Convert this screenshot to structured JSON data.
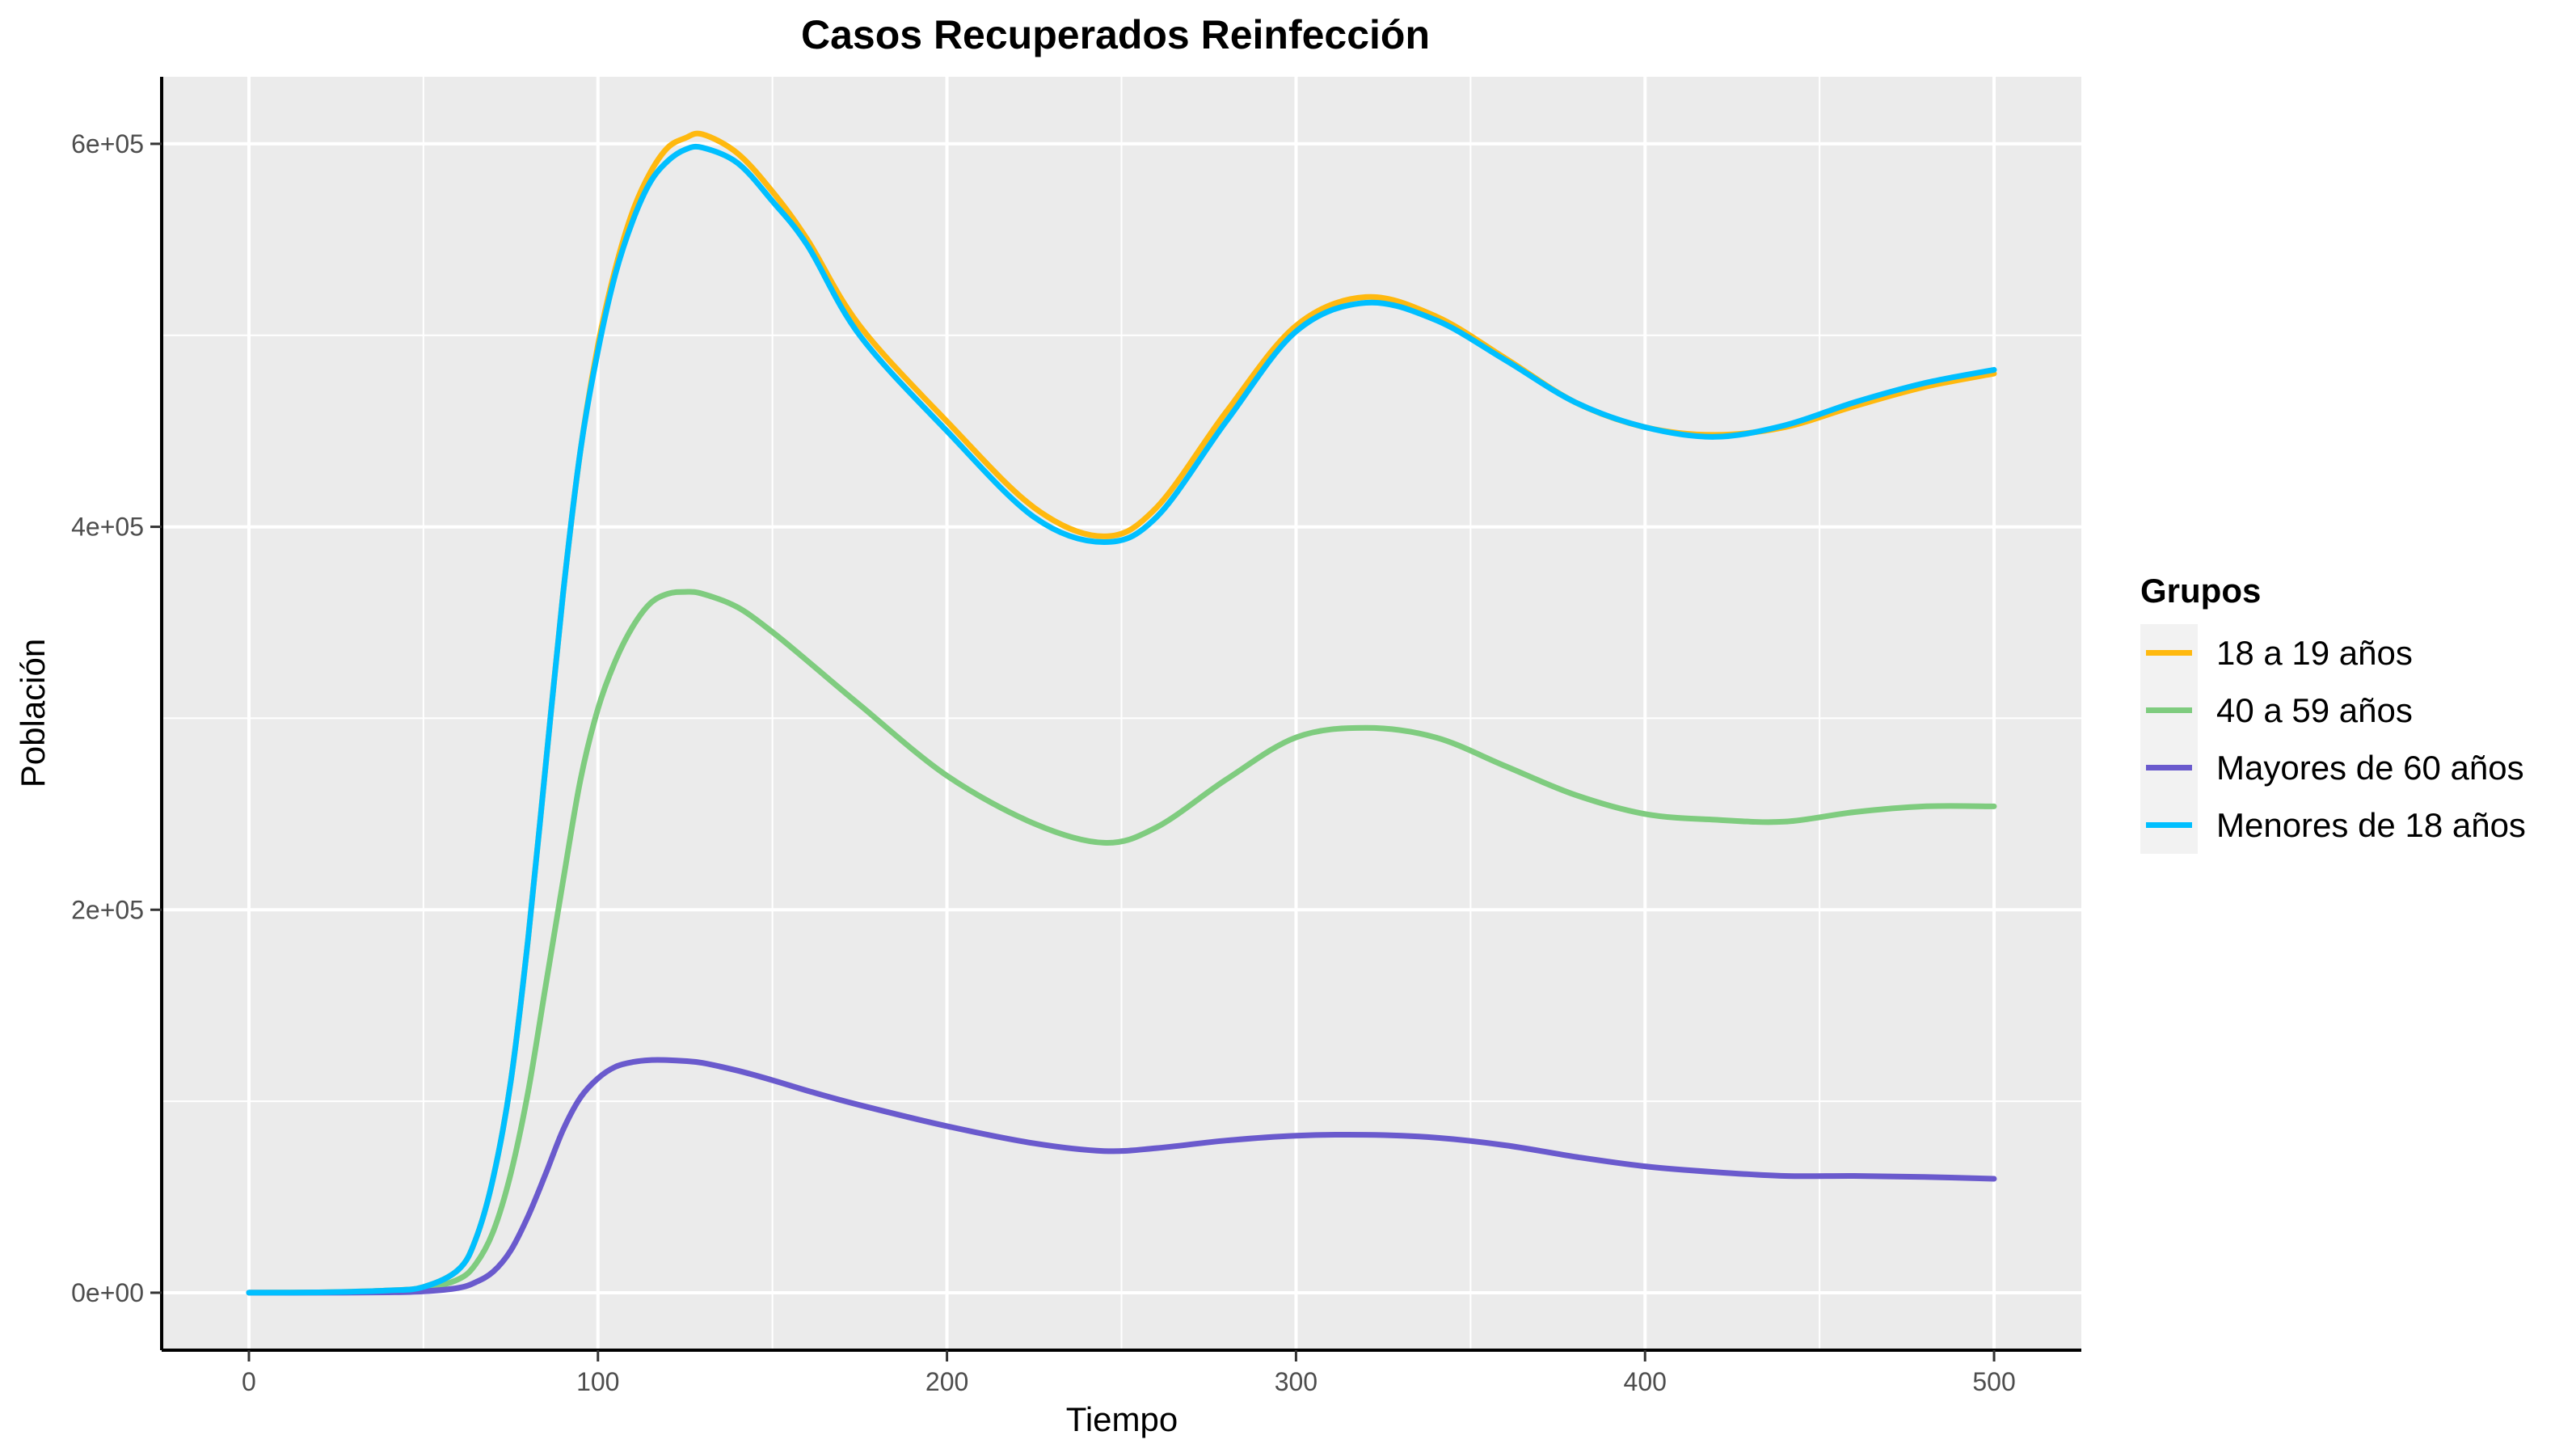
{
  "chart_data": {
    "type": "line",
    "title": "Casos Recuperados Reinfección",
    "xlabel": "Tiempo",
    "ylabel": "Población",
    "xlim": [
      -25,
      525
    ],
    "ylim": [
      -30000,
      635000
    ],
    "x_ticks": [
      0,
      100,
      200,
      300,
      400,
      500
    ],
    "x_tick_labels": [
      "0",
      "100",
      "200",
      "300",
      "400",
      "500"
    ],
    "y_ticks": [
      0,
      200000,
      400000,
      600000
    ],
    "y_tick_labels": [
      "0e+00",
      "2e+05",
      "4e+05",
      "6e+05"
    ],
    "grid": true,
    "legend": {
      "title": "Grupos",
      "position": "right"
    },
    "x": [
      0,
      20,
      40,
      50,
      60,
      65,
      70,
      75,
      80,
      85,
      90,
      95,
      100,
      105,
      110,
      115,
      120,
      125,
      130,
      140,
      150,
      160,
      175,
      200,
      225,
      245,
      260,
      280,
      300,
      320,
      340,
      360,
      380,
      400,
      420,
      440,
      460,
      480,
      500
    ],
    "series": [
      {
        "name": "18 a 19 años",
        "color": "#FFB90F",
        "values": [
          0,
          200,
          1200,
          3000,
          12000,
          28000,
          60000,
          110000,
          185000,
          275000,
          365000,
          440000,
          495000,
          535000,
          565000,
          585000,
          598000,
          603000,
          605000,
          595000,
          575000,
          550000,
          505000,
          455000,
          410000,
          395000,
          410000,
          460000,
          505000,
          520000,
          510000,
          488000,
          465000,
          452000,
          448000,
          452000,
          463000,
          473000,
          480000
        ]
      },
      {
        "name": "40 a 59 años",
        "color": "#7FCC7F",
        "values": [
          0,
          100,
          700,
          1800,
          7000,
          15000,
          32000,
          62000,
          105000,
          160000,
          215000,
          268000,
          305000,
          330000,
          348000,
          360000,
          365000,
          366000,
          365000,
          358000,
          345000,
          330000,
          307000,
          270000,
          245000,
          235000,
          243000,
          268000,
          290000,
          295000,
          290000,
          275000,
          260000,
          250000,
          247000,
          246000,
          251000,
          254000,
          254000
        ]
      },
      {
        "name": "Mayores de 60 años",
        "color": "#6A5ACD",
        "values": [
          0,
          0,
          200,
          700,
          2500,
          5500,
          11000,
          22000,
          40000,
          62000,
          85000,
          102000,
          112000,
          118000,
          120500,
          121500,
          121500,
          121000,
          120000,
          116000,
          111000,
          105500,
          98000,
          87000,
          78000,
          74000,
          75500,
          79500,
          82000,
          82500,
          81000,
          77000,
          71000,
          66000,
          63000,
          61000,
          61000,
          60500,
          59500
        ]
      },
      {
        "name": "Menores de 18 años",
        "color": "#00BFFF",
        "values": [
          0,
          200,
          1200,
          3000,
          12000,
          28000,
          60000,
          110000,
          185000,
          275000,
          365000,
          440000,
          492000,
          532000,
          560000,
          580000,
          591000,
          597000,
          598000,
          590000,
          570000,
          547000,
          500000,
          450000,
          405000,
          392000,
          405000,
          455000,
          502000,
          517000,
          508000,
          487000,
          465000,
          452000,
          447000,
          453000,
          465000,
          475000,
          482000
        ]
      }
    ]
  }
}
